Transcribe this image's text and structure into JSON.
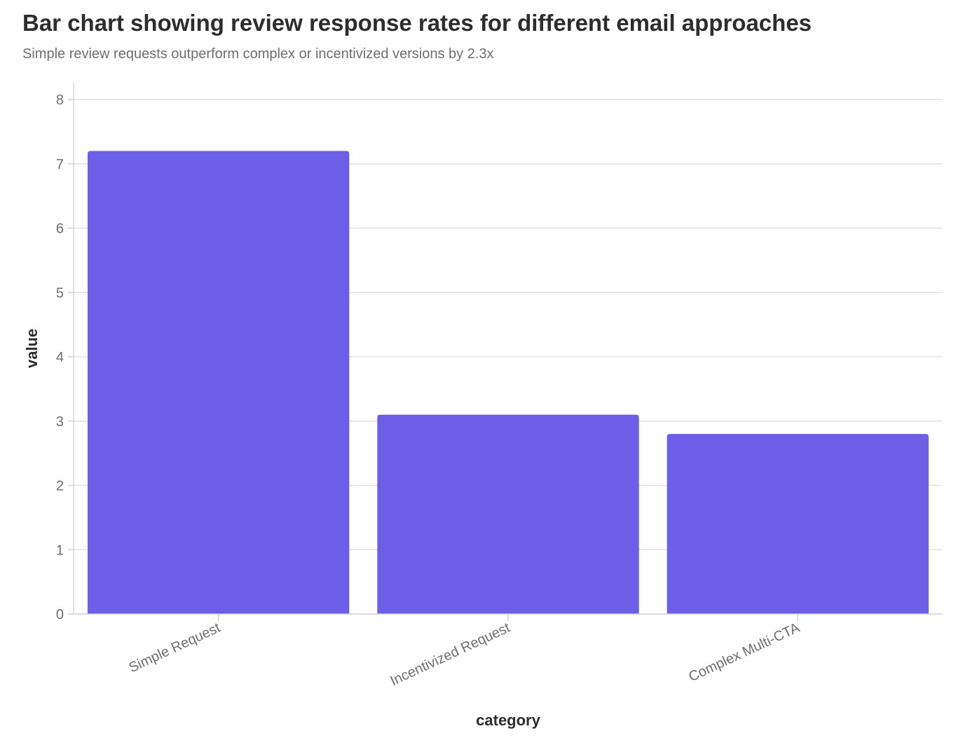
{
  "chart_data": {
    "type": "bar",
    "title": "Bar chart showing review response rates for different email approaches",
    "subtitle": "Simple review requests outperform complex or incentivized versions by 2.3x",
    "xlabel": "category",
    "ylabel": "value",
    "categories": [
      "Simple Request",
      "Incentivized Request",
      "Complex Multi-CTA"
    ],
    "values": [
      7.2,
      3.1,
      2.8
    ],
    "ylim": [
      0,
      8
    ],
    "yticks": [
      0,
      1,
      2,
      3,
      4,
      5,
      6,
      7,
      8
    ],
    "grid": true,
    "legend": "none",
    "colors": {
      "bar": "#6d5ee8",
      "grid": "#dfe3e6",
      "axis": "#cfd4d8",
      "tick_text": "#6b6f72",
      "title_text": "#2d2d2d"
    }
  }
}
